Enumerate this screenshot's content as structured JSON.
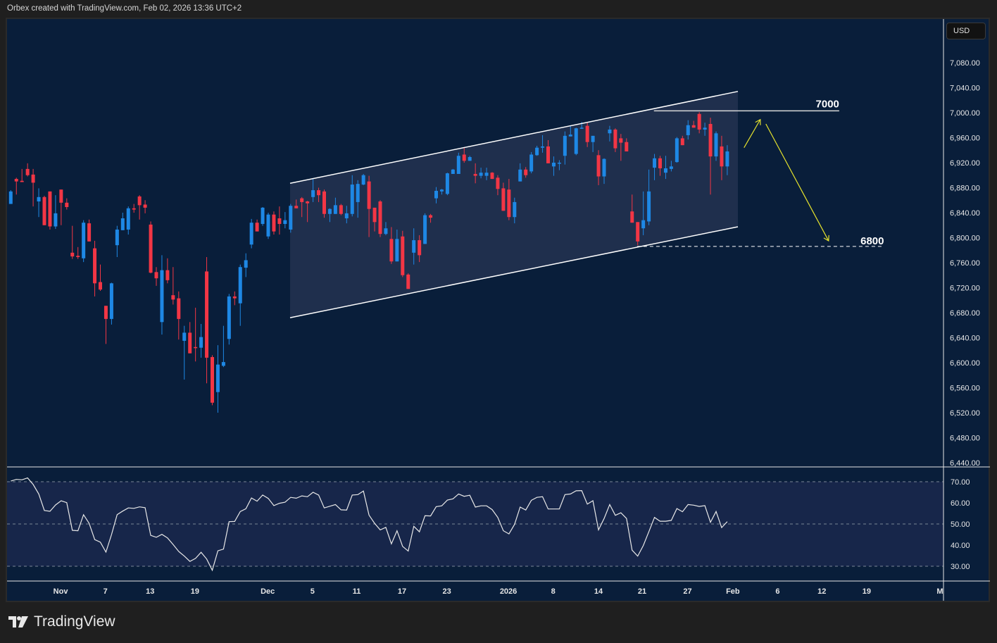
{
  "header": {
    "attribution": "Orbex created with TradingView.com, Feb 02, 2026 13:36 UTC+2"
  },
  "currency_button": "USD",
  "branding": {
    "logo_text": "TradingView"
  },
  "colors": {
    "background": "#091e3a",
    "up": "#1e88e5",
    "down": "#f23645",
    "channel_fill": "#1f2f4d",
    "rsi_band": "#17264a",
    "annotation_arrow": "#e5e22d",
    "line": "#ffffff"
  },
  "chart_data": {
    "type": "candlestick",
    "title": "",
    "ylim": [
      6440,
      7100
    ],
    "price_ticks": [
      "7,080.00",
      "7,040.00",
      "7,000.00",
      "6,960.00",
      "6,920.00",
      "6,880.00",
      "6,840.00",
      "6,800.00",
      "6,760.00",
      "6,720.00",
      "6,680.00",
      "6,640.00",
      "6,600.00",
      "6,560.00",
      "6,520.00",
      "6,480.00",
      "6,440.00"
    ],
    "price_tick_values": [
      7080,
      7040,
      7000,
      6960,
      6920,
      6880,
      6840,
      6800,
      6760,
      6720,
      6680,
      6640,
      6600,
      6560,
      6520,
      6480,
      6440
    ],
    "time_ticks": [
      {
        "label": "Nov",
        "bar": 8.9
      },
      {
        "label": "7",
        "bar": 16.9
      },
      {
        "label": "13",
        "bar": 24.9
      },
      {
        "label": "19",
        "bar": 32.9
      },
      {
        "label": "Dec",
        "bar": 45.9
      },
      {
        "label": "5",
        "bar": 53.9
      },
      {
        "label": "11",
        "bar": 61.8
      },
      {
        "label": "17",
        "bar": 69.9
      },
      {
        "label": "23",
        "bar": 77.9
      },
      {
        "label": "2026",
        "bar": 88.9
      },
      {
        "label": "8",
        "bar": 96.9
      },
      {
        "label": "14",
        "bar": 105
      },
      {
        "label": "21",
        "bar": 112.8
      },
      {
        "label": "27",
        "bar": 120.9
      },
      {
        "label": "Feb",
        "bar": 129
      },
      {
        "label": "6",
        "bar": 137
      },
      {
        "label": "12",
        "bar": 144.9
      },
      {
        "label": "19",
        "bar": 152.9
      },
      {
        "label": "M",
        "bar": 166
      }
    ],
    "ohlc": [
      [
        6854,
        6876,
        6854,
        6874
      ],
      [
        6894,
        6896,
        6869,
        6890
      ],
      [
        6891,
        6910,
        6889,
        6889
      ],
      [
        6910,
        6919,
        6898,
        6900
      ],
      [
        6901,
        6910,
        6850,
        6888
      ],
      [
        6858,
        6879,
        6833,
        6865
      ],
      [
        6865,
        6867,
        6820,
        6820
      ],
      [
        6874,
        6874,
        6813,
        6818
      ],
      [
        6818,
        6868,
        6814,
        6839
      ],
      [
        6877,
        6877,
        6820,
        6856
      ],
      [
        6856,
        6863,
        6845,
        6849
      ],
      [
        6776,
        6819,
        6766,
        6770
      ],
      [
        6771,
        6785,
        6766,
        6769
      ],
      [
        6767,
        6828,
        6761,
        6824
      ],
      [
        6823,
        6829,
        6794,
        6794
      ],
      [
        6783,
        6795,
        6706,
        6727
      ],
      [
        6729,
        6757,
        6715,
        6717
      ],
      [
        6691,
        6691,
        6630,
        6670
      ],
      [
        6670,
        6728,
        6661,
        6727
      ],
      [
        6788,
        6819,
        6769,
        6813
      ],
      [
        6812,
        6840,
        6812,
        6831
      ],
      [
        6813,
        6850,
        6805,
        6847
      ],
      [
        6847,
        6854,
        6840,
        6845
      ],
      [
        6866,
        6868,
        6829,
        6852
      ],
      [
        6853,
        6860,
        6839,
        6848
      ],
      [
        6821,
        6826,
        6743,
        6744
      ],
      [
        6745,
        6753,
        6723,
        6735
      ],
      [
        6665,
        6772,
        6645,
        6748
      ],
      [
        6748,
        6767,
        6727,
        6732
      ],
      [
        6708,
        6753,
        6693,
        6701
      ],
      [
        6703,
        6714,
        6637,
        6670
      ],
      [
        6635,
        6659,
        6573,
        6648
      ],
      [
        6648,
        6665,
        6615,
        6615
      ],
      [
        6625,
        6688,
        6602,
        6624
      ],
      [
        6624,
        6662,
        6608,
        6641
      ],
      [
        6746,
        6769,
        6567,
        6608
      ],
      [
        6609,
        6612,
        6532,
        6536
      ],
      [
        6553,
        6628,
        6520,
        6597
      ],
      [
        6595,
        6659,
        6593,
        6601
      ],
      [
        6638,
        6710,
        6629,
        6706
      ],
      [
        6706,
        6714,
        6692,
        6703
      ],
      [
        6695,
        6757,
        6659,
        6753
      ],
      [
        6752,
        6775,
        6737,
        6764
      ],
      [
        6789,
        6830,
        6783,
        6824
      ],
      [
        6824,
        6829,
        6810,
        6810
      ],
      [
        6822,
        6849,
        6819,
        6848
      ],
      [
        6802,
        6840,
        6798,
        6837
      ],
      [
        6837,
        6842,
        6805,
        6810
      ],
      [
        6831,
        6850,
        6805,
        6822
      ],
      [
        6822,
        6841,
        6815,
        6828
      ],
      [
        6813,
        6854,
        6808,
        6851
      ],
      [
        6851,
        6861,
        6847,
        6847
      ],
      [
        6863,
        6865,
        6833,
        6857
      ],
      [
        6858,
        6859,
        6825,
        6855
      ],
      [
        6865,
        6894,
        6857,
        6876
      ],
      [
        6876,
        6880,
        6857,
        6868
      ],
      [
        6874,
        6877,
        6832,
        6838
      ],
      [
        6838,
        6847,
        6825,
        6846
      ],
      [
        6838,
        6864,
        6838,
        6852
      ],
      [
        6852,
        6854,
        6836,
        6838
      ],
      [
        6831,
        6851,
        6823,
        6839
      ],
      [
        6838,
        6900,
        6834,
        6885
      ],
      [
        6857,
        6892,
        6832,
        6886
      ],
      [
        6885,
        6902,
        6884,
        6900
      ],
      [
        6890,
        6899,
        6801,
        6846
      ],
      [
        6848,
        6848,
        6810,
        6825
      ],
      [
        6858,
        6860,
        6801,
        6806
      ],
      [
        6806,
        6825,
        6804,
        6815
      ],
      [
        6798,
        6817,
        6758,
        6762
      ],
      [
        6762,
        6813,
        6762,
        6798
      ],
      [
        6802,
        6811,
        6737,
        6740
      ],
      [
        6741,
        6743,
        6718,
        6718
      ],
      [
        6776,
        6815,
        6757,
        6796
      ],
      [
        6796,
        6804,
        6761,
        6772
      ],
      [
        6790,
        6839,
        6790,
        6836
      ],
      [
        6836,
        6838,
        6824,
        6832
      ],
      [
        6863,
        6881,
        6855,
        6875
      ],
      [
        6874,
        6878,
        6869,
        6877
      ],
      [
        6870,
        6904,
        6868,
        6903
      ],
      [
        6902,
        6910,
        6902,
        6909
      ],
      [
        6902,
        6936,
        6902,
        6931
      ],
      [
        6933,
        6945,
        6920,
        6923
      ],
      [
        6923,
        6931,
        6923,
        6929
      ],
      [
        6902,
        6919,
        6887,
        6899
      ],
      [
        6899,
        6912,
        6895,
        6904
      ],
      [
        6899,
        6912,
        6892,
        6904
      ],
      [
        6904,
        6905,
        6894,
        6894
      ],
      [
        6896,
        6900,
        6868,
        6878
      ],
      [
        6879,
        6888,
        6843,
        6843
      ],
      [
        6877,
        6894,
        6828,
        6833
      ],
      [
        6833,
        6864,
        6823,
        6857
      ],
      [
        6890,
        6919,
        6890,
        6909
      ],
      [
        6909,
        6913,
        6896,
        6900
      ],
      [
        6906,
        6937,
        6903,
        6933
      ],
      [
        6932,
        6947,
        6931,
        6944
      ],
      [
        6944,
        6964,
        6936,
        6946
      ],
      [
        6946,
        6956,
        6919,
        6919
      ],
      [
        6914,
        6930,
        6899,
        6920
      ],
      [
        6919,
        6924,
        6908,
        6920
      ],
      [
        6931,
        6970,
        6917,
        6963
      ],
      [
        6962,
        6979,
        6962,
        6965
      ],
      [
        6934,
        6976,
        6932,
        6975
      ],
      [
        6975,
        6985,
        6974,
        6976
      ],
      [
        6979,
        6984,
        6945,
        6953
      ],
      [
        6953,
        6963,
        6937,
        6963
      ],
      [
        6932,
        6940,
        6884,
        6898
      ],
      [
        6898,
        6927,
        6886,
        6926
      ],
      [
        6967,
        6979,
        6954,
        6973
      ],
      [
        6973,
        6975,
        6937,
        6943
      ],
      [
        6959,
        6966,
        6923,
        6952
      ],
      [
        6953,
        6959,
        6938,
        6938
      ],
      [
        6842,
        6869,
        6824,
        6824
      ],
      [
        6825,
        6825,
        6788,
        6794
      ],
      [
        6815,
        6874,
        6804,
        6828
      ],
      [
        6826,
        6909,
        6820,
        6874
      ],
      [
        6912,
        6934,
        6892,
        6927
      ],
      [
        6927,
        6931,
        6899,
        6911
      ],
      [
        6904,
        6931,
        6894,
        6911
      ],
      [
        6910,
        6923,
        6906,
        6914
      ],
      [
        6921,
        6961,
        6920,
        6959
      ],
      [
        6959,
        6963,
        6948,
        6948
      ],
      [
        6964,
        6988,
        6957,
        6980
      ],
      [
        6980,
        6987,
        6976,
        6976
      ],
      [
        6998,
        7001,
        6967,
        6973
      ],
      [
        6973,
        6984,
        6963,
        6976
      ],
      [
        6982,
        6992,
        6869,
        6930
      ],
      [
        6930,
        6970,
        6923,
        6967
      ],
      [
        6946,
        6963,
        6892,
        6914
      ],
      [
        6914,
        6948,
        6900,
        6938
      ]
    ],
    "drawings": {
      "channel_upper": [
        [
          49.9,
          6887
        ],
        [
          129.9,
          7034
        ]
      ],
      "channel_lower": [
        [
          49.9,
          6672
        ],
        [
          129.9,
          6817.5
        ]
      ],
      "resistance": {
        "label": "7000",
        "from": [
          114.9,
          7003
        ],
        "to": [
          148,
          7003
        ]
      },
      "support": {
        "label": "6800",
        "from": [
          111.9,
          6786
        ],
        "to": [
          156,
          6786
        ]
      },
      "arrow_up": [
        [
          131,
          6944
        ],
        [
          133.9,
          6989
        ]
      ],
      "arrow_down": [
        [
          134.9,
          6982
        ],
        [
          146.1,
          6795
        ]
      ]
    },
    "rsi": {
      "ylim": [
        22,
        82
      ],
      "ticks": [
        "70.00",
        "60.00",
        "50.00",
        "40.00",
        "30.00"
      ],
      "tick_values": [
        70,
        60,
        50,
        40,
        30
      ],
      "band": [
        30,
        70
      ],
      "values": [
        70.3,
        71.1,
        70.9,
        71.8,
        68.7,
        64.2,
        56.4,
        56,
        59,
        61,
        60.1,
        47,
        46.8,
        54.4,
        50.3,
        42.6,
        41.4,
        36.7,
        45,
        54.4,
        56.1,
        57.6,
        57.4,
        58.1,
        57.7,
        44.6,
        43.7,
        45.1,
        43.4,
        40.3,
        37,
        34.8,
        32.3,
        33.7,
        36.6,
        33.4,
        28.1,
        37.3,
        38.1,
        51.1,
        51.2,
        55.9,
        57.2,
        62.3,
        60.8,
        63.7,
        62.1,
        58.7,
        59.8,
        60.3,
        62.6,
        62.2,
        63.3,
        62.9,
        65,
        63.7,
        57.6,
        58.4,
        59.2,
        56.7,
        56.6,
        63.7,
        63.9,
        65.6,
        54.2,
        50.3,
        47.2,
        48.4,
        40.6,
        46.8,
        39.4,
        37.2,
        48.9,
        46.3,
        53.9,
        53.8,
        58.2,
        58.6,
        61.3,
        61.9,
        64.2,
        63.1,
        63.6,
        58,
        58.6,
        58.6,
        56.8,
        53.1,
        46.8,
        45.3,
        49.8,
        58,
        56.6,
        61.2,
        62.6,
        62.9,
        57.1,
        57.1,
        57.1,
        63.9,
        64.2,
        65.7,
        65.8,
        59.4,
        61,
        47.2,
        52.6,
        59.2,
        54.1,
        55.3,
        52.6,
        37.6,
        34.8,
        39.8,
        46.4,
        53.1,
        51.3,
        51.3,
        51.7,
        57.3,
        55.8,
        59.2,
        58.9,
        58.3,
        58.7,
        50.8,
        55.9,
        48.3,
        51.1
      ]
    }
  }
}
